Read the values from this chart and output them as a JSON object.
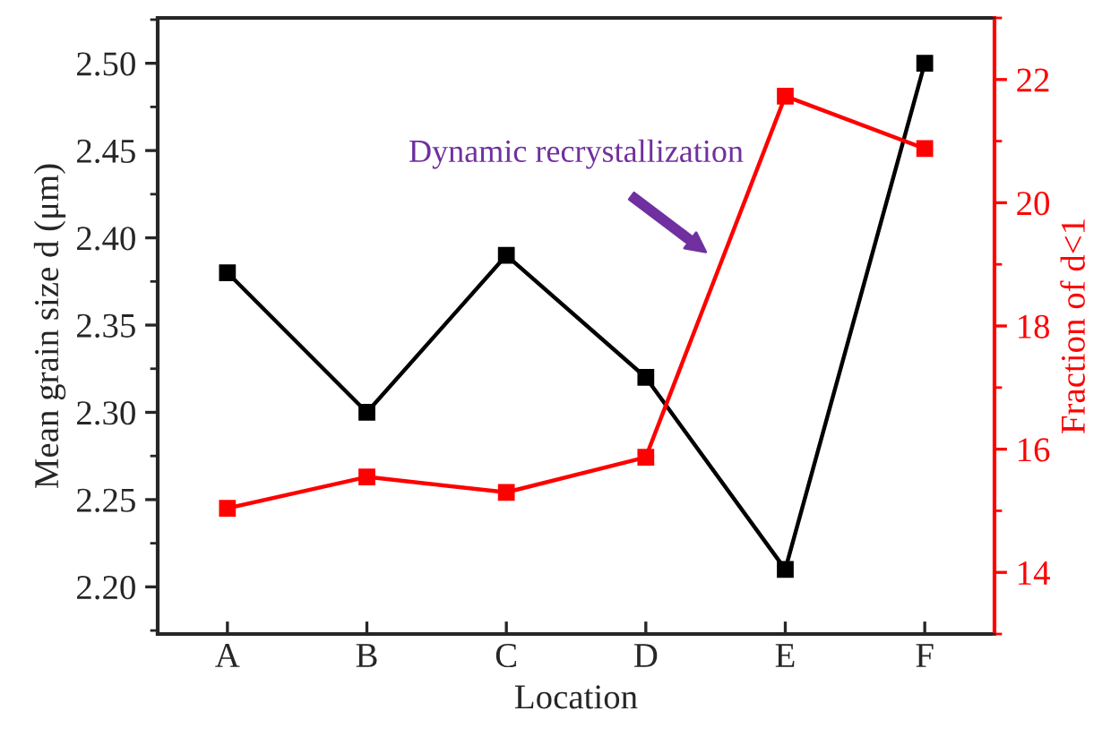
{
  "chart_data": {
    "type": "line",
    "xlabel": "Location",
    "ylabel": "Mean grain size d (μm)",
    "y2label": "Fraction of d<1",
    "categories": [
      "A",
      "B",
      "C",
      "D",
      "E",
      "F"
    ],
    "series": [
      {
        "color": "#000000",
        "values": [
          2.38,
          2.3,
          2.39,
          2.32,
          2.21,
          2.5
        ]
      },
      {
        "color": "#ff0000",
        "axis": "y2",
        "values": [
          15.04,
          15.55,
          15.3,
          15.87,
          21.73,
          20.88
        ]
      }
    ],
    "ylim": [
      2.173,
      2.526
    ],
    "yticks": [
      {
        "value": 2.2,
        "label": "2.20"
      },
      2.25,
      {
        "value": 2.3,
        "label": "2.30"
      },
      2.35,
      {
        "value": 2.4,
        "label": "2.40"
      },
      2.45,
      {
        "value": 2.5,
        "label": "2.50"
      }
    ],
    "y2lim": [
      13,
      23
    ],
    "y2ticks": [
      14,
      16,
      18,
      20,
      22
    ],
    "marker": "square",
    "line_style": "solid",
    "grid": false,
    "legend": false,
    "annotations": [
      "Dynamic recrystallization"
    ]
  }
}
